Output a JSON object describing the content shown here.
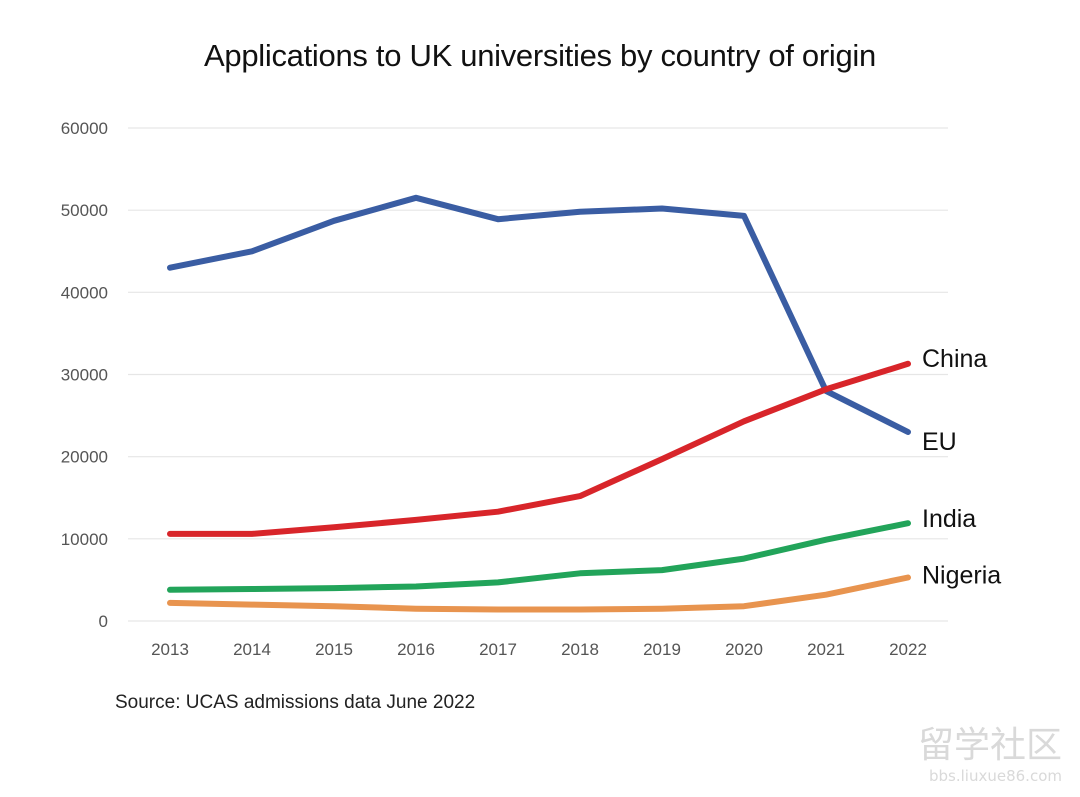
{
  "chart_data": {
    "type": "line",
    "title": "Applications to UK universities by country of origin",
    "x": [
      "2013",
      "2014",
      "2015",
      "2016",
      "2017",
      "2018",
      "2019",
      "2020",
      "2021",
      "2022"
    ],
    "ylim": [
      0,
      60000
    ],
    "yticks": [
      "0",
      "10000",
      "20000",
      "30000",
      "40000",
      "50000",
      "60000"
    ],
    "grid": true,
    "legend": "inline-right",
    "series": [
      {
        "name": "EU",
        "color": "#3a5da3",
        "values": [
          43000,
          45000,
          48700,
          51500,
          48900,
          49800,
          50200,
          49300,
          28000,
          23000
        ]
      },
      {
        "name": "China",
        "color": "#d8252a",
        "values": [
          10600,
          10600,
          11400,
          12300,
          13300,
          15200,
          19700,
          24300,
          28200,
          31300
        ]
      },
      {
        "name": "India",
        "color": "#22a45a",
        "values": [
          3800,
          3900,
          4000,
          4200,
          4700,
          5800,
          6200,
          7600,
          9900,
          11900
        ]
      },
      {
        "name": "Nigeria",
        "color": "#e8944f",
        "values": [
          2200,
          2000,
          1800,
          1500,
          1400,
          1400,
          1500,
          1800,
          3200,
          5300
        ]
      }
    ],
    "source": "Source: UCAS admissions data June 2022"
  },
  "watermark": {
    "text": "留学社区",
    "url": "bbs.liuxue86.com"
  }
}
